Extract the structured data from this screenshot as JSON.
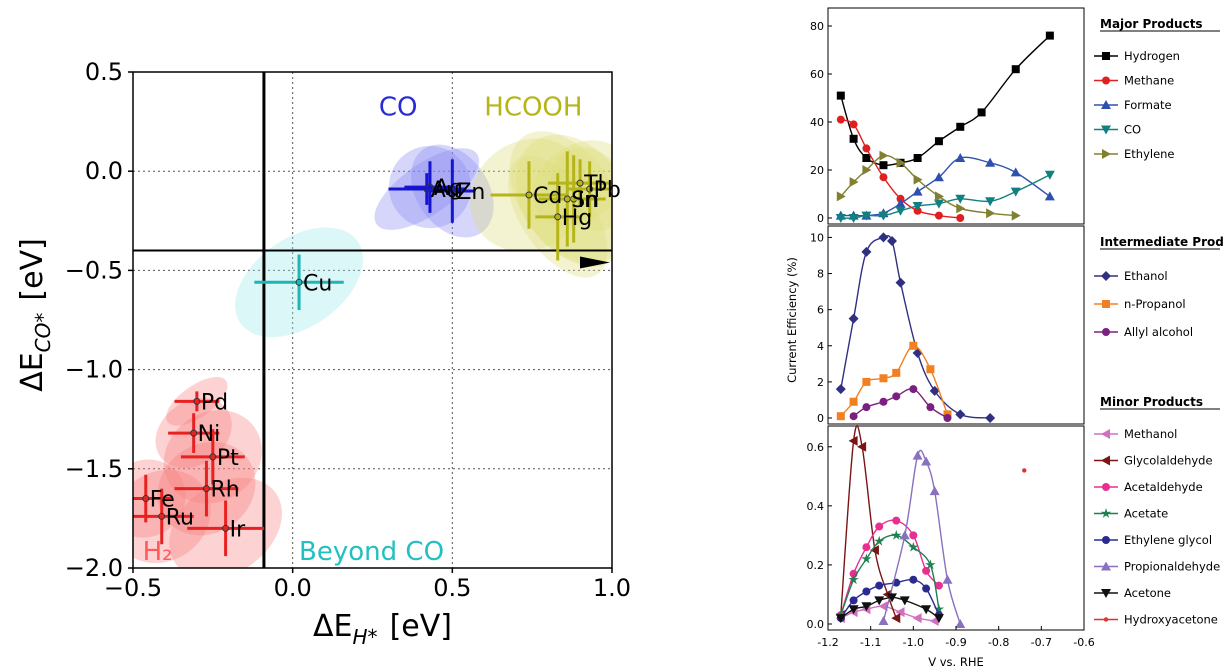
{
  "chart_data": [
    {
      "type": "scatter",
      "title": "",
      "xlabel_main": "ΔE",
      "xlabel_sub": "H*",
      "xlabel_unit": "[eV]",
      "ylabel_main": "ΔE",
      "ylabel_sub": "CO*",
      "ylabel_unit": "[eV]",
      "xlim": [
        -0.5,
        1.0
      ],
      "ylim": [
        -2.0,
        0.5
      ],
      "x_ticks": [
        -0.5,
        0.0,
        0.5,
        1.0
      ],
      "x_tick_labels": [
        "−0.5",
        "0.0",
        "0.5",
        "1.0"
      ],
      "y_ticks": [
        -2.0,
        -1.5,
        -1.0,
        -0.5,
        0.0,
        0.5
      ],
      "y_tick_labels": [
        "−2.0",
        "−1.5",
        "−1.0",
        "−0.5",
        "0.0",
        "0.5"
      ],
      "grid": true,
      "threshold_x": -0.09,
      "threshold_y": -0.4,
      "region_labels": [
        {
          "text": "CO",
          "x": 0.27,
          "y": 0.28,
          "color": "#2a2ad8"
        },
        {
          "text": "HCOOH",
          "x": 0.6,
          "y": 0.28,
          "color": "#b5b51a"
        },
        {
          "text": "Beyond CO",
          "x": 0.02,
          "y": -1.96,
          "color": "#22c0c0"
        },
        {
          "text": "H₂",
          "x": -0.47,
          "y": -1.96,
          "color": "#ff5a5a"
        }
      ],
      "groups": [
        {
          "name": "H2",
          "color": "#e82020",
          "ellipse": "#f57f7f",
          "points": [
            {
              "label": "Pd",
              "x": -0.3,
              "y": -1.16,
              "xerr": 0.07,
              "yerr": 0.05
            },
            {
              "label": "Ni",
              "x": -0.31,
              "y": -1.32,
              "xerr": 0.08,
              "yerr": 0.1
            },
            {
              "label": "Pt",
              "x": -0.25,
              "y": -1.44,
              "xerr": 0.1,
              "yerr": 0.14
            },
            {
              "label": "Rh",
              "x": -0.27,
              "y": -1.6,
              "xerr": 0.1,
              "yerr": 0.14
            },
            {
              "label": "Fe",
              "x": -0.46,
              "y": -1.65,
              "xerr": 0.08,
              "yerr": 0.12
            },
            {
              "label": "Ru",
              "x": -0.41,
              "y": -1.74,
              "xerr": 0.1,
              "yerr": 0.14
            },
            {
              "label": "Ir",
              "x": -0.21,
              "y": -1.8,
              "xerr": 0.12,
              "yerr": 0.14
            }
          ]
        },
        {
          "name": "CO",
          "color": "#1515d0",
          "ellipse": "#8a8af0",
          "points": [
            {
              "label": "Au",
              "x": 0.42,
              "y": -0.09,
              "xerr": 0.12,
              "yerr": 0.08
            },
            {
              "label": "Ag",
              "x": 0.43,
              "y": -0.08,
              "xerr": 0.08,
              "yerr": 0.13
            },
            {
              "label": "Zn",
              "x": 0.5,
              "y": -0.1,
              "xerr": 0.07,
              "yerr": 0.16
            }
          ]
        },
        {
          "name": "Cu",
          "color": "#1fb5b5",
          "ellipse": "#9ae8e8",
          "points": [
            {
              "label": "Cu",
              "x": 0.02,
              "y": -0.56,
              "xerr": 0.14,
              "yerr": 0.14
            }
          ]
        },
        {
          "name": "HCOOH",
          "color": "#b5b51a",
          "ellipse": "#dede7a",
          "points": [
            {
              "label": "Cd",
              "x": 0.74,
              "y": -0.12,
              "xerr": 0.12,
              "yerr": 0.17
            },
            {
              "label": "In",
              "x": 0.88,
              "y": -0.14,
              "xerr": 0.1,
              "yerr": 0.22
            },
            {
              "label": "Sn",
              "x": 0.86,
              "y": -0.14,
              "xerr": 0.09,
              "yerr": 0.24
            },
            {
              "label": "Tl",
              "x": 0.9,
              "y": -0.06,
              "xerr": 0.1,
              "yerr": 0.12
            },
            {
              "label": "Pb",
              "x": 0.93,
              "y": -0.09,
              "xerr": 0.07,
              "yerr": 0.14
            },
            {
              "label": "Hg",
              "x": 0.83,
              "y": -0.23,
              "xerr": 0.07,
              "yerr": 0.22
            }
          ]
        }
      ]
    },
    {
      "type": "line",
      "title": "",
      "xlabel": "V vs. RHE",
      "ylabel": "Current Efficiency (%)",
      "xlim": [
        -1.2,
        -0.6
      ],
      "x_ticks": [
        -1.2,
        -1.1,
        -1.0,
        -0.9,
        -0.8,
        -0.7,
        -0.6
      ],
      "x_tick_labels": [
        "-1.2",
        "-1.1",
        "-1.0",
        "-0.9",
        "-0.8",
        "-0.7",
        "-0.6"
      ],
      "panels": [
        {
          "legend_title": "Major Products",
          "ylim": [
            0,
            85
          ],
          "y_ticks": [
            0,
            20,
            40,
            60,
            80
          ],
          "series": [
            {
              "name": "Hydrogen",
              "color": "#000000",
              "marker": "square",
              "x": [
                -1.17,
                -1.14,
                -1.11,
                -1.07,
                -1.03,
                -0.99,
                -0.94,
                -0.89,
                -0.84,
                -0.76,
                -0.68
              ],
              "y": [
                51,
                33,
                25,
                22,
                23,
                25,
                32,
                38,
                44,
                62,
                76
              ]
            },
            {
              "name": "Methane",
              "color": "#e02020",
              "marker": "circle",
              "x": [
                -1.17,
                -1.14,
                -1.11,
                -1.07,
                -1.03,
                -0.99,
                -0.94,
                -0.89
              ],
              "y": [
                41,
                39,
                29,
                17,
                8,
                3,
                1,
                0
              ]
            },
            {
              "name": "Formate",
              "color": "#3050b0",
              "marker": "triangle-up",
              "x": [
                -1.17,
                -1.14,
                -1.11,
                -1.07,
                -1.03,
                -0.99,
                -0.94,
                -0.89,
                -0.82,
                -0.76,
                -0.68
              ],
              "y": [
                1,
                1,
                1,
                2,
                6,
                11,
                17,
                25,
                23,
                19,
                9
              ]
            },
            {
              "name": "CO",
              "color": "#108080",
              "marker": "triangle-down",
              "x": [
                -1.17,
                -1.14,
                -1.11,
                -1.07,
                -1.03,
                -0.99,
                -0.94,
                -0.89,
                -0.82,
                -0.76,
                -0.68
              ],
              "y": [
                0,
                0,
                1,
                1,
                3,
                5,
                6,
                8,
                7,
                11,
                18
              ]
            },
            {
              "name": "Ethylene",
              "color": "#808030",
              "marker": "triangle-right",
              "x": [
                -1.17,
                -1.14,
                -1.11,
                -1.07,
                -1.03,
                -0.99,
                -0.94,
                -0.89,
                -0.82,
                -0.76
              ],
              "y": [
                9,
                15,
                20,
                26,
                23,
                16,
                9,
                4,
                2,
                1
              ]
            }
          ]
        },
        {
          "legend_title": "Intermediate Products",
          "ylim": [
            0,
            10.3
          ],
          "y_ticks": [
            0,
            2,
            4,
            6,
            8,
            10
          ],
          "series": [
            {
              "name": "Ethanol",
              "color": "#303080",
              "marker": "diamond",
              "x": [
                -1.17,
                -1.14,
                -1.11,
                -1.07,
                -1.05,
                -1.03,
                -0.99,
                -0.95,
                -0.89,
                -0.82
              ],
              "y": [
                1.6,
                5.5,
                9.2,
                10,
                9.8,
                7.5,
                3.6,
                1.5,
                0.2,
                0
              ]
            },
            {
              "name": "n-Propanol",
              "color": "#f08020",
              "marker": "square",
              "x": [
                -1.17,
                -1.14,
                -1.11,
                -1.07,
                -1.04,
                -1.0,
                -0.96,
                -0.92
              ],
              "y": [
                0.1,
                0.9,
                2,
                2.2,
                2.5,
                4,
                2.7,
                0.2
              ]
            },
            {
              "name": "Allyl alcohol",
              "color": "#7a2080",
              "marker": "circle",
              "x": [
                -1.14,
                -1.11,
                -1.07,
                -1.04,
                -1.0,
                -0.96,
                -0.92
              ],
              "y": [
                0.1,
                0.6,
                0.9,
                1.2,
                1.6,
                0.6,
                0
              ]
            }
          ]
        },
        {
          "legend_title": "Minor Products",
          "ylim": [
            0,
            0.65
          ],
          "y_ticks": [
            0,
            0.2,
            0.4,
            0.6
          ],
          "y_tick_labels": [
            "0.0",
            "0.2",
            "0.4",
            "0.6"
          ],
          "series": [
            {
              "name": "Methanol",
              "color": "#d070c0",
              "marker": "triangle-left",
              "x": [
                -1.17,
                -1.14,
                -1.11,
                -1.07,
                -1.03,
                -0.99,
                -0.95
              ],
              "y": [
                0.02,
                0.04,
                0.05,
                0.06,
                0.04,
                0.02,
                0.01
              ]
            },
            {
              "name": "Glycolaldehyde",
              "color": "#7a1515",
              "marker": "triangle-left",
              "x": [
                -1.17,
                -1.14,
                -1.12,
                -1.09,
                -1.06,
                -1.04
              ],
              "y": [
                0.03,
                0.62,
                0.6,
                0.25,
                0.1,
                0.02
              ]
            },
            {
              "name": "Acetaldehyde",
              "color": "#e83090",
              "marker": "circle",
              "x": [
                -1.17,
                -1.14,
                -1.11,
                -1.08,
                -1.04,
                -1.0,
                -0.97,
                -0.94
              ],
              "y": [
                0.03,
                0.17,
                0.26,
                0.33,
                0.35,
                0.3,
                0.18,
                0.13
              ]
            },
            {
              "name": "Acetate",
              "color": "#208050",
              "marker": "star",
              "x": [
                -1.17,
                -1.14,
                -1.11,
                -1.08,
                -1.04,
                -1.0,
                -0.96,
                -0.94
              ],
              "y": [
                0.03,
                0.15,
                0.22,
                0.28,
                0.3,
                0.26,
                0.2,
                0.05
              ]
            },
            {
              "name": "Ethylene glycol",
              "color": "#2a2a90",
              "marker": "circle",
              "x": [
                -1.17,
                -1.14,
                -1.11,
                -1.08,
                -1.04,
                -1.0,
                -0.97,
                -0.94
              ],
              "y": [
                0.02,
                0.08,
                0.11,
                0.13,
                0.14,
                0.15,
                0.12,
                0.03
              ]
            },
            {
              "name": "Propionaldehyde",
              "color": "#8a70c0",
              "marker": "triangle-up",
              "x": [
                -1.07,
                -1.02,
                -0.99,
                -0.97,
                -0.95,
                -0.92,
                -0.89
              ],
              "y": [
                0.01,
                0.3,
                0.57,
                0.55,
                0.45,
                0.15,
                0
              ]
            },
            {
              "name": "Acetone",
              "color": "#101010",
              "marker": "triangle-down",
              "x": [
                -1.17,
                -1.14,
                -1.11,
                -1.08,
                -1.05,
                -1.02,
                -0.97,
                -0.94
              ],
              "y": [
                0.02,
                0.05,
                0.06,
                0.08,
                0.09,
                0.08,
                0.05,
                0.02
              ]
            },
            {
              "name": "Hydroxyacetone",
              "color": "#e03030",
              "marker": "dot",
              "x": [
                -0.74
              ],
              "y": [
                0.52
              ]
            }
          ]
        }
      ]
    }
  ]
}
